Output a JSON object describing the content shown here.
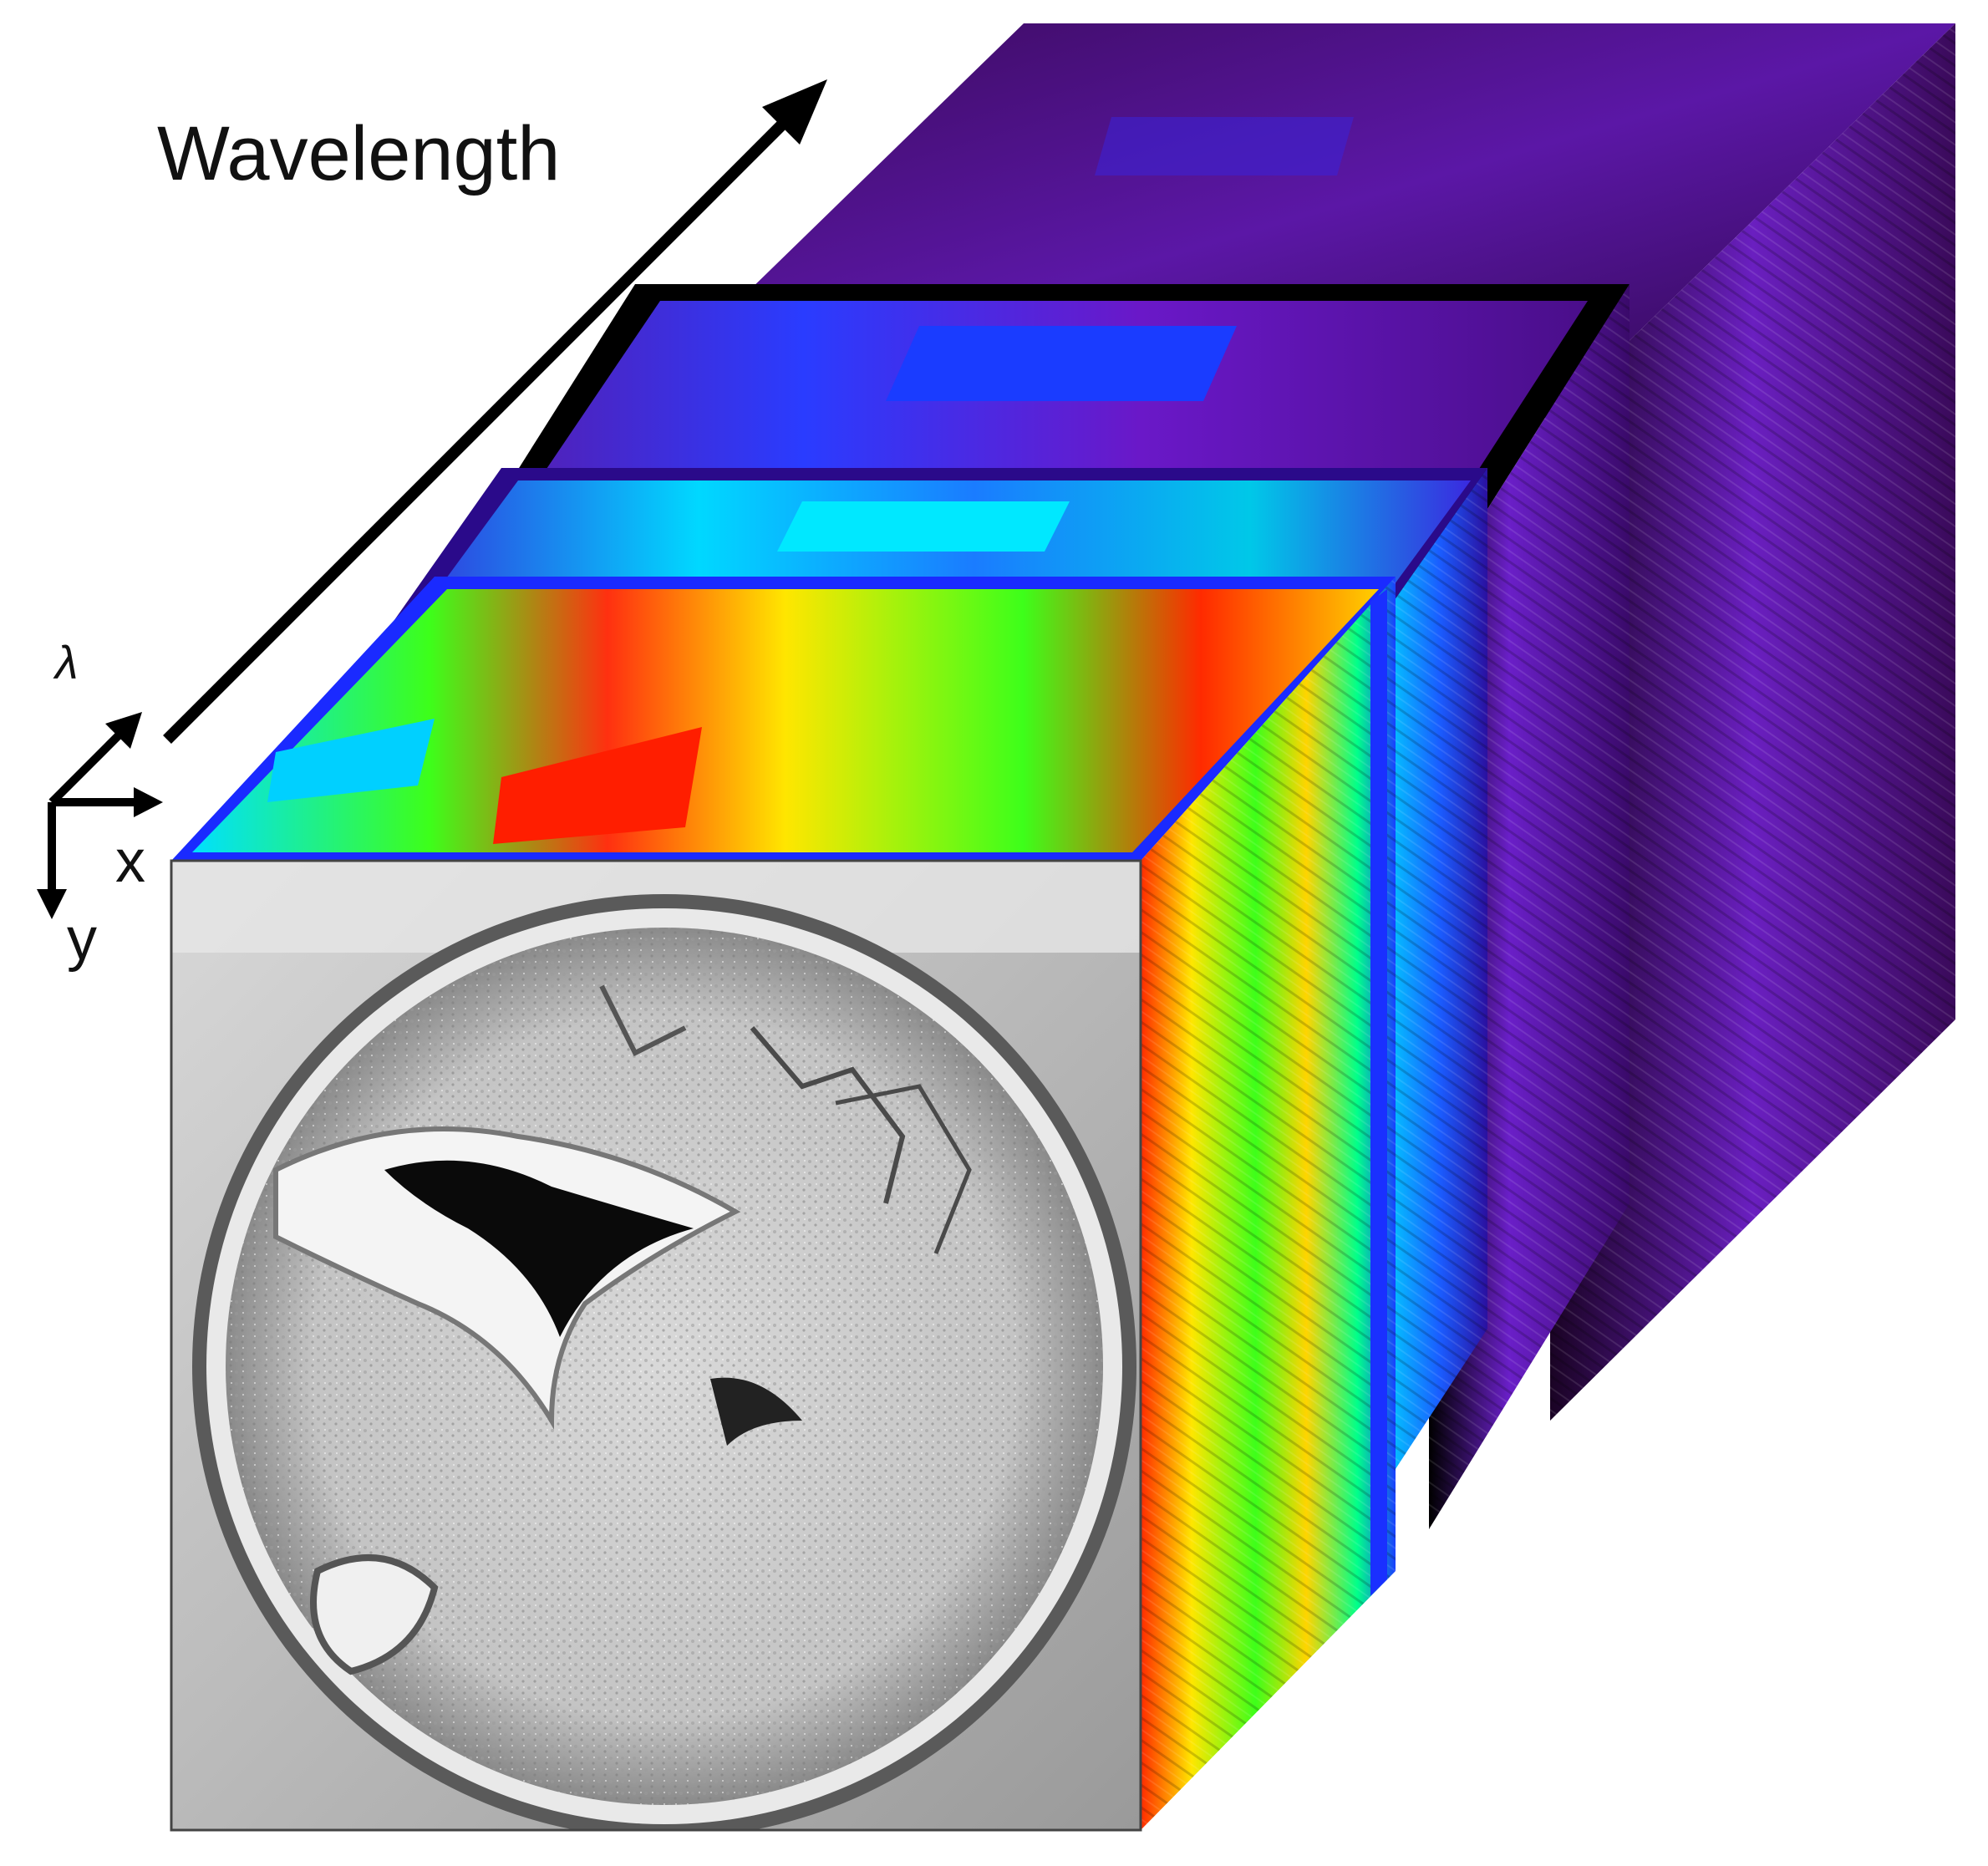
{
  "labels": {
    "wavelength": "Wavelength",
    "axis_lambda": "λ",
    "axis_x": "x",
    "axis_y": "y"
  },
  "colors": {
    "background": "#ffffff",
    "text": "#111111",
    "arrow": "#000000",
    "colormap": [
      "#ff1e00",
      "#ffe600",
      "#3dff1a",
      "#00e5ff",
      "#1a3cff",
      "#6a0dbd",
      "#2a003a",
      "#000000"
    ]
  },
  "figure": {
    "slice_count": 4,
    "front_image": "grayscale photograph of a petri dish with fungal/bacterial colony growth"
  }
}
